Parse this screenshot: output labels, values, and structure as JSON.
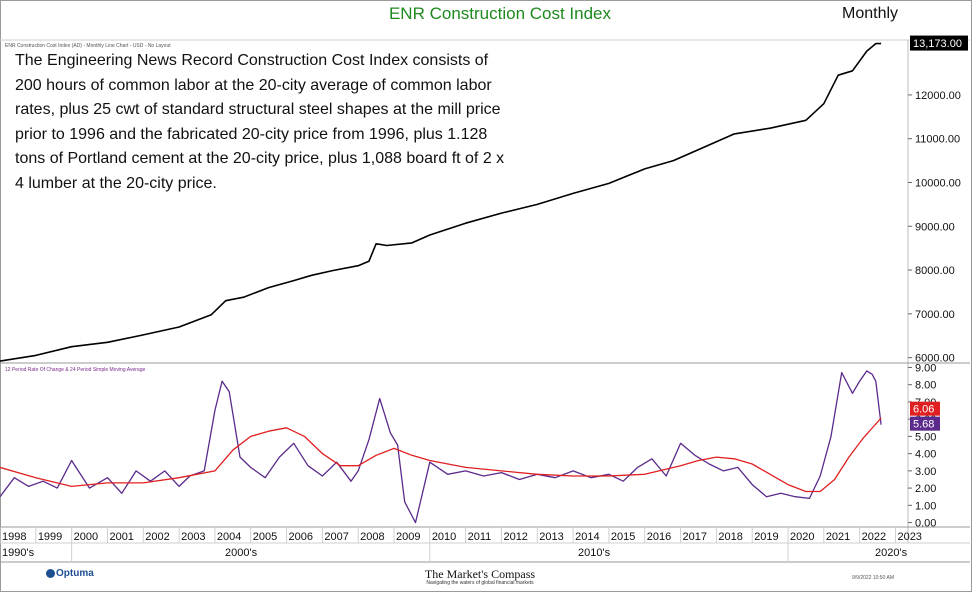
{
  "header": {
    "title": "ENR Construction Cost Index",
    "period": "Monthly"
  },
  "description": "The Engineering News Record Construction Cost Index consists of 200 hours of common labor at the 20-city average of common labor rates, plus 25 cwt of standard structural steel shapes at the mill price prior to 1996 and the fabricated 20-city price from 1996, plus 1.128 tons of Portland cement at the 20-city price, plus 1,088 board ft of 2 x 4 lumber at the 20-city price.",
  "footer": {
    "brand": "Optuma",
    "center": "The Market's Compass",
    "tagline": "Navigating the waters of global financial markets",
    "timestamp": "9/9/2022 10:50 AM"
  },
  "chart_data": [
    {
      "type": "line",
      "label": "ENR Construction Cost Index (AD) - Monthly Line Chart - USD - No Layout",
      "ylim": [
        5900,
        13300
      ],
      "yticks": [
        "6000.00",
        "7000.00",
        "8000.00",
        "9000.00",
        "10000.00",
        "11000.00",
        "12000.00"
      ],
      "last_value_label": "13,173.00",
      "series": [
        {
          "color": "#000000",
          "x": [
            1998.0,
            1999.0,
            2000.0,
            2001.0,
            2002.0,
            2003.0,
            2003.9,
            2004.3,
            2004.8,
            2005.5,
            2006.2,
            2006.7,
            2007.3,
            2008.0,
            2008.3,
            2008.5,
            2008.8,
            2009.5,
            2010.0,
            2011.0,
            2012.0,
            2013.0,
            2014.0,
            2015.0,
            2016.0,
            2016.8,
            2017.5,
            2018.5,
            2019.5,
            2020.5,
            2021.0,
            2021.4,
            2021.8,
            2022.2,
            2022.45,
            2022.6
          ],
          "values": [
            5920,
            6050,
            6250,
            6350,
            6520,
            6700,
            6980,
            7300,
            7380,
            7600,
            7760,
            7880,
            7990,
            8100,
            8200,
            8600,
            8560,
            8620,
            8800,
            9070,
            9300,
            9500,
            9750,
            9980,
            10310,
            10500,
            10750,
            11110,
            11240,
            11420,
            11800,
            12450,
            12550,
            13000,
            13173,
            13173
          ]
        }
      ]
    },
    {
      "type": "line",
      "label": "12 Period Rate Of Change & 24 Period Simple Moving Average",
      "ylim": [
        -0.2,
        9.2
      ],
      "yticks": [
        "0.00",
        "1.00",
        "2.00",
        "3.00",
        "4.00",
        "5.00",
        "6.00",
        "7.00",
        "8.00",
        "9.00"
      ],
      "x_ticks": [
        "1998",
        "1999",
        "2000",
        "2001",
        "2002",
        "2003",
        "2004",
        "2005",
        "2006",
        "2007",
        "2008",
        "2009",
        "2010",
        "2011",
        "2012",
        "2013",
        "2014",
        "2015",
        "2016",
        "2017",
        "2018",
        "2019",
        "2020",
        "2021",
        "2022",
        "2023"
      ],
      "decades": [
        "1990's",
        "2000's",
        "2010's",
        "2020's"
      ],
      "series": [
        {
          "name": "12 Period Rate Of Change",
          "color": "#5b2a8c",
          "value_label": "5.68",
          "x": [
            1998.0,
            1998.4,
            1998.8,
            1999.2,
            1999.6,
            2000.0,
            2000.5,
            2001.0,
            2001.4,
            2001.8,
            2002.2,
            2002.6,
            2003.0,
            2003.3,
            2003.7,
            2004.0,
            2004.2,
            2004.4,
            2004.7,
            2005.0,
            2005.4,
            2005.8,
            2006.2,
            2006.6,
            2007.0,
            2007.4,
            2007.8,
            2008.0,
            2008.3,
            2008.6,
            2008.9,
            2009.1,
            2009.3,
            2009.6,
            2010.0,
            2010.5,
            2011.0,
            2011.5,
            2012.0,
            2012.5,
            2013.0,
            2013.5,
            2014.0,
            2014.5,
            2015.0,
            2015.4,
            2015.8,
            2016.2,
            2016.6,
            2017.0,
            2017.4,
            2017.8,
            2018.2,
            2018.6,
            2019.0,
            2019.4,
            2019.8,
            2020.2,
            2020.6,
            2020.9,
            2021.2,
            2021.5,
            2021.8,
            2022.0,
            2022.2,
            2022.35,
            2022.45,
            2022.6
          ],
          "values": [
            1.5,
            2.6,
            2.1,
            2.4,
            2.0,
            3.6,
            2.0,
            2.6,
            1.7,
            3.0,
            2.4,
            3.0,
            2.1,
            2.7,
            3.0,
            6.5,
            8.2,
            7.6,
            3.8,
            3.2,
            2.6,
            3.8,
            4.6,
            3.3,
            2.7,
            3.5,
            2.4,
            3.0,
            4.8,
            7.2,
            5.2,
            4.5,
            1.2,
            0.0,
            3.5,
            2.8,
            3.0,
            2.7,
            2.9,
            2.5,
            2.8,
            2.6,
            3.0,
            2.6,
            2.8,
            2.4,
            3.2,
            3.7,
            2.7,
            4.6,
            3.9,
            3.4,
            3.0,
            3.2,
            2.2,
            1.5,
            1.7,
            1.5,
            1.4,
            2.7,
            5.0,
            8.7,
            7.5,
            8.2,
            8.8,
            8.6,
            8.2,
            5.68
          ]
        },
        {
          "name": "24 Period Simple Moving Average",
          "color": "#e02020",
          "value_label": "6.06",
          "x": [
            1998.0,
            1999.0,
            2000.0,
            2001.0,
            2002.0,
            2003.0,
            2004.0,
            2004.5,
            2005.0,
            2005.5,
            2006.0,
            2006.5,
            2007.0,
            2007.5,
            2008.0,
            2008.5,
            2009.0,
            2009.5,
            2010.0,
            2011.0,
            2012.0,
            2013.0,
            2014.0,
            2015.0,
            2016.0,
            2017.0,
            2017.5,
            2018.0,
            2018.5,
            2019.0,
            2019.5,
            2020.0,
            2020.5,
            2020.9,
            2021.3,
            2021.7,
            2022.1,
            2022.4,
            2022.6
          ],
          "values": [
            3.2,
            2.6,
            2.1,
            2.3,
            2.3,
            2.6,
            3.0,
            4.2,
            5.0,
            5.3,
            5.5,
            5.0,
            4.0,
            3.3,
            3.3,
            3.9,
            4.3,
            3.9,
            3.6,
            3.2,
            3.0,
            2.8,
            2.7,
            2.7,
            2.8,
            3.3,
            3.6,
            3.8,
            3.7,
            3.4,
            2.8,
            2.2,
            1.8,
            1.8,
            2.5,
            3.8,
            4.9,
            5.6,
            6.06
          ]
        }
      ]
    }
  ]
}
